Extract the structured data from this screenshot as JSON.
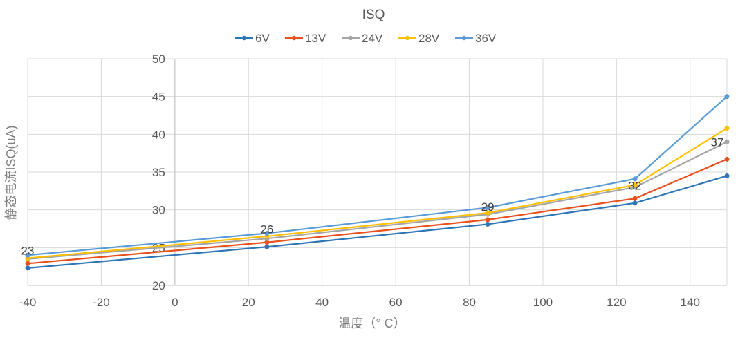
{
  "chart_data": {
    "type": "line",
    "title": "ISQ",
    "xlabel": "温度（° C）",
    "ylabel": "静态电流ISQ(uA)",
    "x": [
      -40,
      25,
      85,
      125,
      150
    ],
    "xlim": [
      -40,
      150
    ],
    "ylim": [
      20,
      50
    ],
    "xticks": [
      -40,
      -20,
      0,
      20,
      40,
      60,
      80,
      100,
      120,
      140
    ],
    "yticks": [
      20,
      25,
      30,
      35,
      40,
      45,
      50
    ],
    "grid": true,
    "legend_position": "top",
    "series": [
      {
        "name": "6V",
        "color": "#2e75b6",
        "values": [
          22.3,
          25.1,
          28.1,
          30.9,
          34.5
        ]
      },
      {
        "name": "13V",
        "color": "#e8501c",
        "values": [
          22.9,
          25.7,
          28.7,
          31.5,
          36.7
        ]
      },
      {
        "name": "24V",
        "color": "#a5a5a5",
        "values": [
          23.5,
          26.2,
          29.4,
          33.0,
          39.0
        ]
      },
      {
        "name": "28V",
        "color": "#ffc000",
        "values": [
          23.6,
          26.5,
          29.6,
          33.3,
          40.8
        ]
      },
      {
        "name": "36V",
        "color": "#5b9bd5",
        "values": [
          24.0,
          26.9,
          30.3,
          34.1,
          45.0
        ]
      }
    ],
    "data_labels": {
      "series": "13V",
      "labels": [
        "23",
        "26",
        "29",
        "32",
        "37"
      ]
    }
  }
}
